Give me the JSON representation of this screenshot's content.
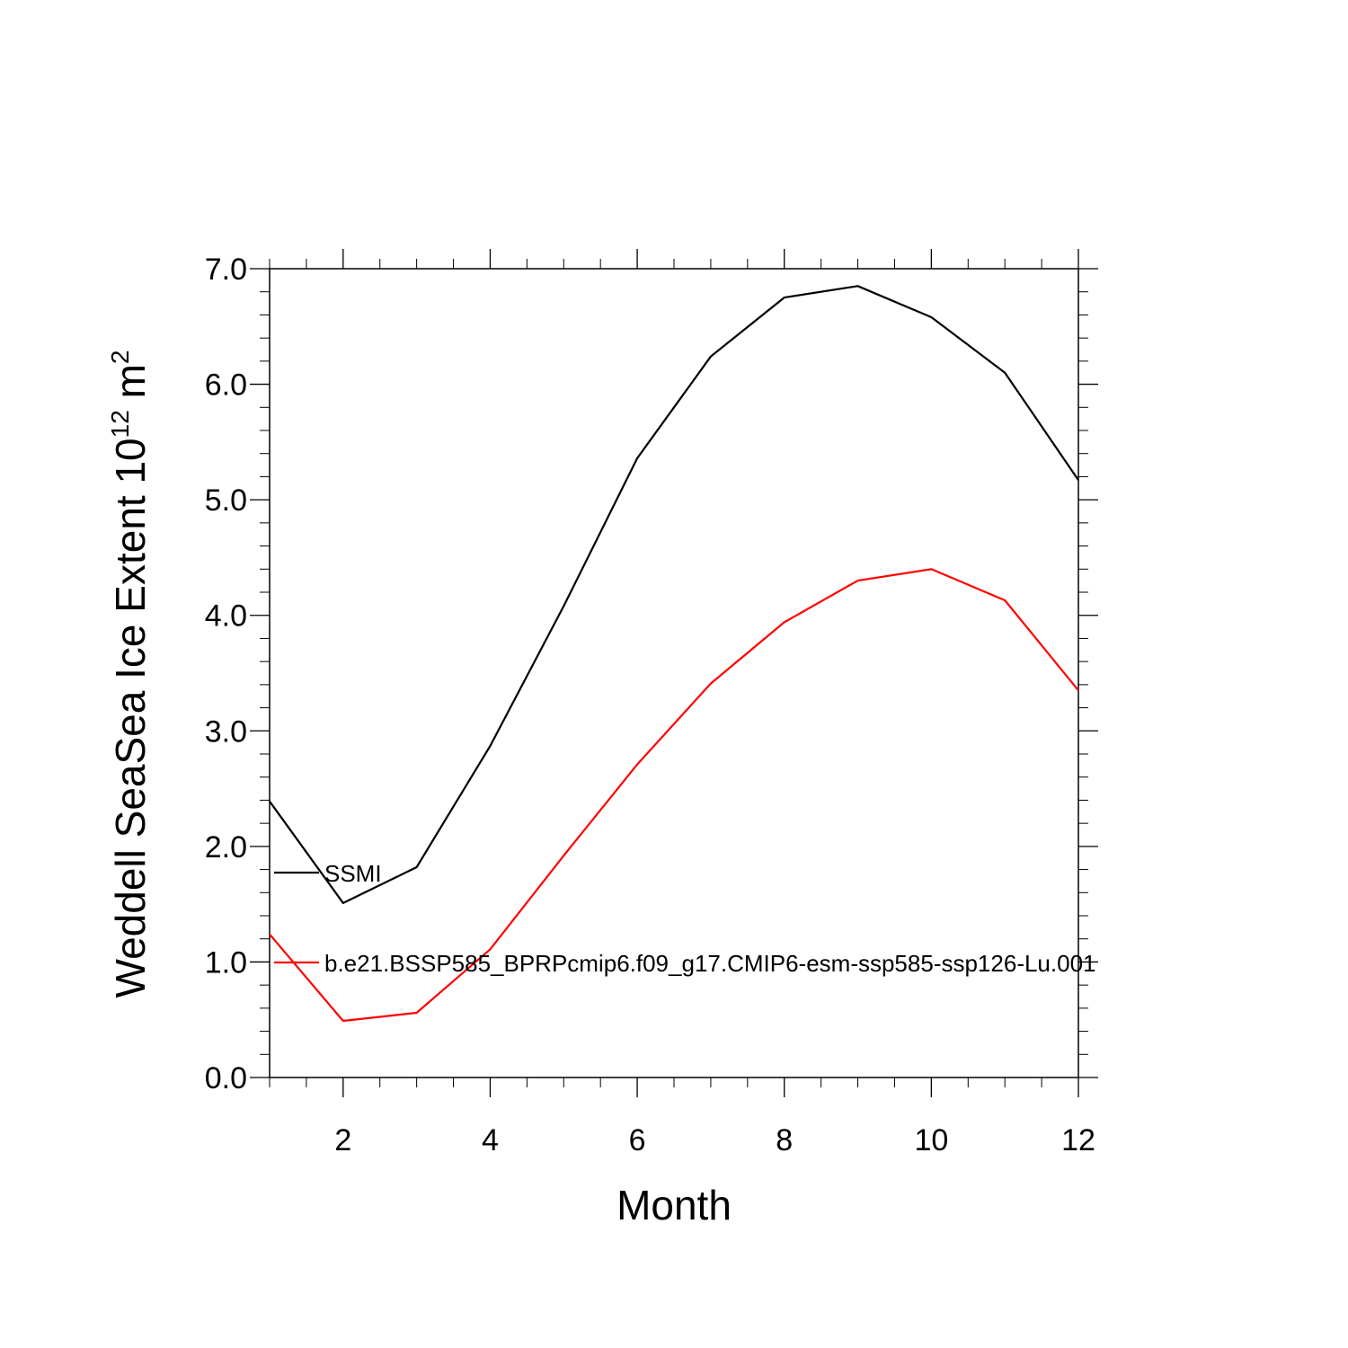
{
  "chart_data": {
    "type": "line",
    "title": "",
    "xlabel": "Month",
    "ylabel": {
      "prefix": "Weddell SeaSea Ice Extent 10",
      "superscript": "12",
      "unit": " m",
      "unit_superscript": "2"
    },
    "xlim": [
      1,
      12
    ],
    "ylim": [
      0,
      7
    ],
    "x_ticks": [
      2,
      4,
      6,
      8,
      10,
      12
    ],
    "x_tick_labels": [
      "2",
      "4",
      "6",
      "8",
      "10",
      "12"
    ],
    "y_ticks": [
      0,
      1,
      2,
      3,
      4,
      5,
      6,
      7
    ],
    "y_tick_labels": [
      "0.0",
      "1.0",
      "2.0",
      "3.0",
      "4.0",
      "5.0",
      "6.0",
      "7.0"
    ],
    "grid": false,
    "legend_position": "inside-left",
    "x": [
      1,
      2,
      3,
      4,
      5,
      6,
      7,
      8,
      9,
      10,
      11,
      12
    ],
    "series": [
      {
        "name": "SSMI",
        "color": "#000000",
        "values": [
          2.39,
          1.51,
          1.82,
          2.87,
          4.08,
          5.36,
          6.24,
          6.75,
          6.85,
          6.58,
          6.1,
          5.17
        ]
      },
      {
        "name": "b.e21.BSSP585_BPRPcmip6.f09_g17.CMIP6-esm-ssp585-ssp126-Lu.001",
        "color": "#ff0000",
        "values": [
          1.24,
          0.49,
          0.56,
          1.11,
          1.92,
          2.71,
          3.41,
          3.94,
          4.3,
          4.4,
          4.13,
          3.35
        ]
      }
    ]
  }
}
